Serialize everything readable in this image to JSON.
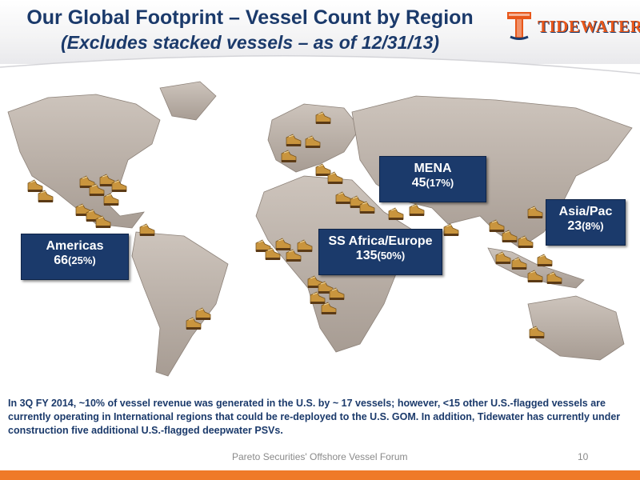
{
  "header": {
    "title": "Our Global Footprint – Vessel Count by Region",
    "subtitle": "(Excludes stacked vessels – as of 12/31/13)"
  },
  "logo": {
    "text": "TIDEWATER"
  },
  "colors": {
    "navy": "#1b3a6b",
    "orange": "#ef7a28",
    "land": "#b7aca3",
    "boot": "#c9953e"
  },
  "regions": [
    {
      "name": "Americas",
      "count": "66",
      "percent": "(25%)"
    },
    {
      "name": "SS Africa/Europe",
      "count": "135",
      "percent": "(50%)"
    },
    {
      "name": "MENA",
      "count": "45",
      "percent": "(17%)"
    },
    {
      "name": "Asia/Pac",
      "count": "23",
      "percent": "(8%)"
    }
  ],
  "map": {
    "marker_icon": "work-boot-icon"
  },
  "note": "In 3Q FY 2014, ~10% of vessel revenue was generated in the U.S. by ~ 17 vessels; however, <15 other U.S.-flagged vessels are currently operating in International regions that could be re-deployed to the U.S. GOM. In addition, Tidewater has currently under construction five additional U.S.-flagged deepwater PSVs.",
  "footer": {
    "event": "Pareto Securities' Offshore Vessel Forum",
    "page": "10"
  }
}
